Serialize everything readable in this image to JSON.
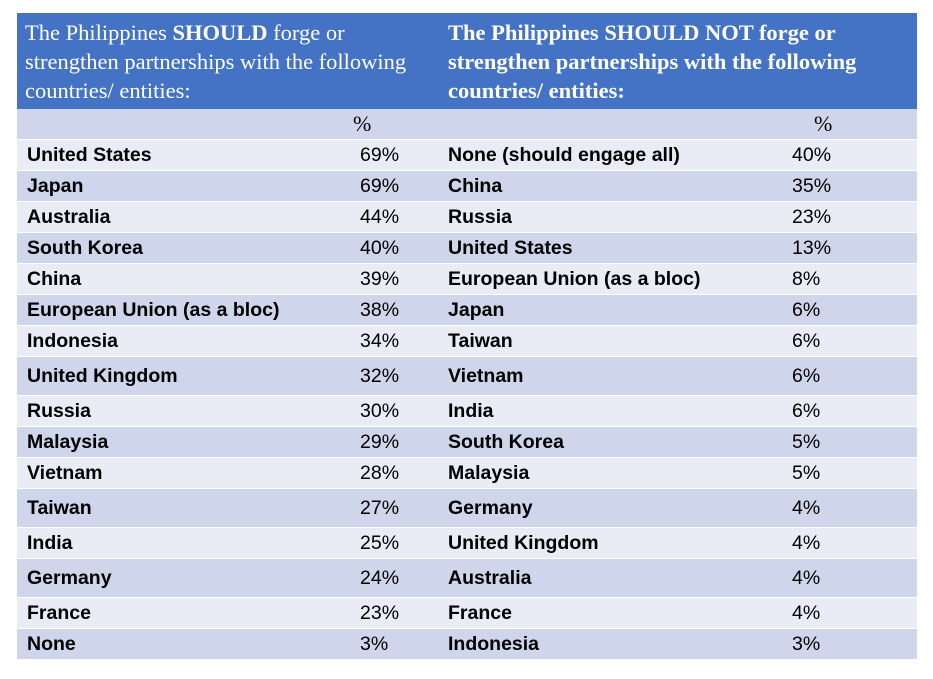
{
  "header": {
    "left_pre": "The Philippines ",
    "left_bold": "SHOULD",
    "left_post": " forge or strengthen partnerships with the following countries/ entities:",
    "right": "The Philippines SHOULD NOT forge or strengthen partnerships with the following countries/ entities:"
  },
  "pct_label": "%",
  "rows": [
    {
      "should": "United States",
      "should_pct": "69%",
      "not": "None (should engage all)",
      "not_pct": "40%"
    },
    {
      "should": "Japan",
      "should_pct": "69%",
      "not": "China",
      "not_pct": "35%"
    },
    {
      "should": "Australia",
      "should_pct": "44%",
      "not": "Russia",
      "not_pct": "23%"
    },
    {
      "should": "South Korea",
      "should_pct": "40%",
      "not": "United States",
      "not_pct": "13%"
    },
    {
      "should": "China",
      "should_pct": "39%",
      "not": "European Union (as a bloc)",
      "not_pct": "8%"
    },
    {
      "should": "European Union (as a bloc)",
      "should_pct": "38%",
      "not": "Japan",
      "not_pct": "6%"
    },
    {
      "should": "Indonesia",
      "should_pct": "34%",
      "not": "Taiwan",
      "not_pct": "6%"
    },
    {
      "should": "United Kingdom",
      "should_pct": "32%",
      "not": "Vietnam",
      "not_pct": "6%"
    },
    {
      "should": "Russia",
      "should_pct": "30%",
      "not": "India",
      "not_pct": "6%"
    },
    {
      "should": "Malaysia",
      "should_pct": "29%",
      "not": "South Korea",
      "not_pct": "5%"
    },
    {
      "should": "Vietnam",
      "should_pct": "28%",
      "not": "Malaysia",
      "not_pct": "5%"
    },
    {
      "should": "Taiwan",
      "should_pct": "27%",
      "not": "Germany",
      "not_pct": "4%"
    },
    {
      "should": "India",
      "should_pct": "25%",
      "not": "United Kingdom",
      "not_pct": "4%"
    },
    {
      "should": "Germany",
      "should_pct": "24%",
      "not": "Australia",
      "not_pct": "4%"
    },
    {
      "should": "France",
      "should_pct": "23%",
      "not": "France",
      "not_pct": "4%"
    },
    {
      "should": "None",
      "should_pct": "3%",
      "not": "Indonesia",
      "not_pct": "3%"
    }
  ]
}
